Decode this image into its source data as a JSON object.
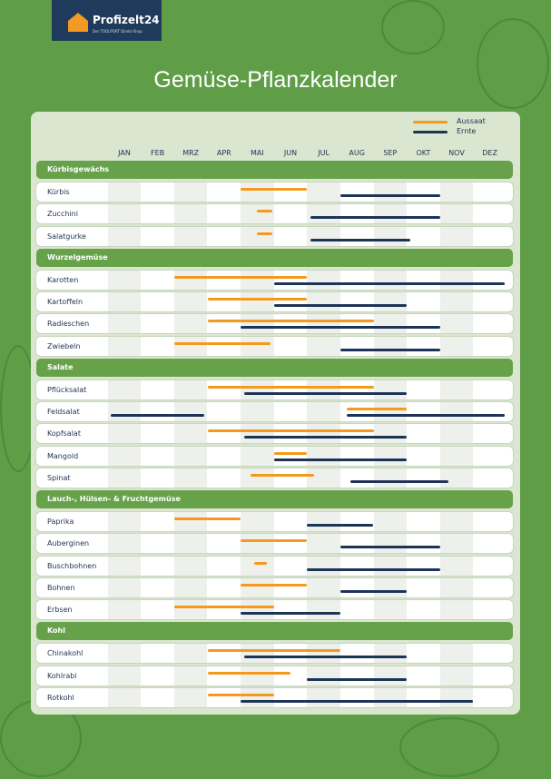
{
  "logo": {
    "name": "Profizelt24",
    "tagline": "Der TOOLPORT Direkt-Shop"
  },
  "title": "Gemüse-Pflanzkalender",
  "legend": [
    {
      "label": "Aussaat",
      "color": "#f39a1e"
    },
    {
      "label": "Ernte",
      "color": "#1c3557"
    }
  ],
  "months": [
    "JAN",
    "FEB",
    "MRZ",
    "APR",
    "MAI",
    "JUN",
    "JUL",
    "AUG",
    "SEP",
    "OKT",
    "NOV",
    "DEZ"
  ],
  "categories": [
    {
      "name": "Kürbisgewächs",
      "items": [
        {
          "name": "Kürbis",
          "aussaat": [
            [
              4,
              6
            ]
          ],
          "ernte": [
            [
              7,
              10
            ]
          ]
        },
        {
          "name": "Zucchini",
          "aussaat": [
            [
              4.5,
              4.95
            ]
          ],
          "ernte": [
            [
              6.1,
              10
            ]
          ]
        },
        {
          "name": "Salatgurke",
          "aussaat": [
            [
              4.5,
              4.95
            ]
          ],
          "ernte": [
            [
              6.1,
              9.1
            ]
          ]
        }
      ]
    },
    {
      "name": "Wurzelgemüse",
      "items": [
        {
          "name": "Karotten",
          "aussaat": [
            [
              2,
              6
            ]
          ],
          "ernte": [
            [
              5,
              11.95
            ]
          ]
        },
        {
          "name": "Kartoffeln",
          "aussaat": [
            [
              3,
              6
            ]
          ],
          "ernte": [
            [
              5,
              9
            ]
          ]
        },
        {
          "name": "Radieschen",
          "aussaat": [
            [
              3,
              8
            ]
          ],
          "ernte": [
            [
              4,
              10
            ]
          ]
        },
        {
          "name": "Zwiebeln",
          "aussaat": [
            [
              2,
              4.9
            ]
          ],
          "ernte": [
            [
              7,
              10
            ]
          ]
        }
      ]
    },
    {
      "name": "Salate",
      "items": [
        {
          "name": "Pflücksalat",
          "aussaat": [
            [
              3,
              8
            ]
          ],
          "ernte": [
            [
              4.1,
              9
            ]
          ]
        },
        {
          "name": "Feldsalat",
          "aussaat": [
            [
              7.2,
              9
            ]
          ],
          "ernte": [
            [
              0.1,
              2.9
            ],
            [
              7.2,
              11.95
            ]
          ]
        },
        {
          "name": "Kopfsalat",
          "aussaat": [
            [
              3,
              8
            ]
          ],
          "ernte": [
            [
              4.1,
              9
            ]
          ]
        },
        {
          "name": "Mangold",
          "aussaat": [
            [
              5,
              6
            ]
          ],
          "ernte": [
            [
              5,
              9
            ]
          ]
        },
        {
          "name": "Spinat",
          "aussaat": [
            [
              4.3,
              6.2
            ]
          ],
          "ernte": [
            [
              7.3,
              10.25
            ]
          ]
        }
      ]
    },
    {
      "name": "Lauch-, Hülsen- & Fruchtgemüse",
      "items": [
        {
          "name": "Paprika",
          "aussaat": [
            [
              2,
              4
            ]
          ],
          "ernte": [
            [
              6,
              8
            ]
          ]
        },
        {
          "name": "Auberginen",
          "aussaat": [
            [
              4,
              6
            ]
          ],
          "ernte": [
            [
              7,
              10
            ]
          ]
        },
        {
          "name": "Buschbohnen",
          "aussaat": [
            [
              4.4,
              4.8
            ]
          ],
          "ernte": [
            [
              6,
              10
            ]
          ]
        },
        {
          "name": "Bohnen",
          "aussaat": [
            [
              4,
              6
            ]
          ],
          "ernte": [
            [
              7,
              9
            ]
          ]
        },
        {
          "name": "Erbsen",
          "aussaat": [
            [
              2,
              5
            ]
          ],
          "ernte": [
            [
              4,
              7
            ]
          ]
        }
      ]
    },
    {
      "name": "Kohl",
      "items": [
        {
          "name": "Chinakohl",
          "aussaat": [
            [
              3,
              7
            ]
          ],
          "ernte": [
            [
              4.1,
              9
            ]
          ]
        },
        {
          "name": "Kohlrabi",
          "aussaat": [
            [
              3,
              5.5
            ]
          ],
          "ernte": [
            [
              6,
              9
            ]
          ]
        },
        {
          "name": "Rotkohl",
          "aussaat": [
            [
              3,
              5
            ]
          ],
          "ernte": [
            [
              4,
              11
            ]
          ]
        }
      ]
    }
  ]
}
